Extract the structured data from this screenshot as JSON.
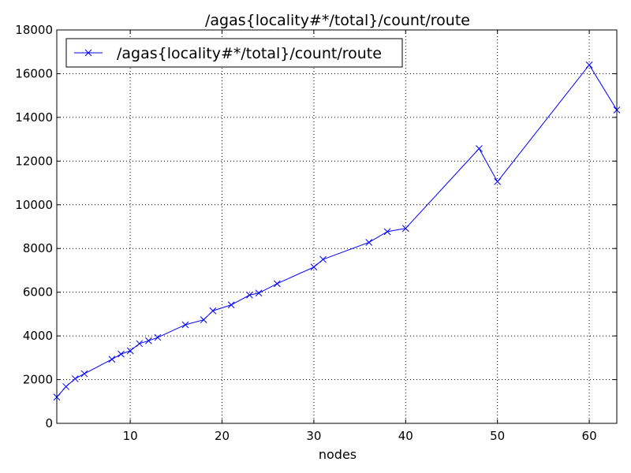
{
  "chart_data": {
    "type": "line",
    "title": "/agas{locality#*/total}/count/route",
    "xlabel": "nodes",
    "ylabel": "",
    "xlim": [
      2,
      63
    ],
    "ylim": [
      0,
      18000
    ],
    "xticks": [
      10,
      20,
      30,
      40,
      50,
      60
    ],
    "yticks": [
      0,
      2000,
      4000,
      6000,
      8000,
      10000,
      12000,
      14000,
      16000,
      18000
    ],
    "grid": true,
    "legend_position": "top-left",
    "series": [
      {
        "name": "/agas{locality#*/total}/count/route",
        "color": "#0000ff",
        "marker": "x",
        "x": [
          2,
          3,
          4,
          5,
          8,
          9,
          10,
          11,
          12,
          13,
          16,
          18,
          19,
          21,
          23,
          24,
          26,
          30,
          31,
          36,
          38,
          40,
          48,
          50,
          60,
          63
        ],
        "y": [
          1200,
          1680,
          2040,
          2270,
          2930,
          3170,
          3320,
          3650,
          3780,
          3930,
          4510,
          4740,
          5150,
          5420,
          5870,
          5960,
          6390,
          7150,
          7500,
          8280,
          8770,
          8920,
          12570,
          11060,
          16400,
          14340
        ]
      }
    ]
  }
}
